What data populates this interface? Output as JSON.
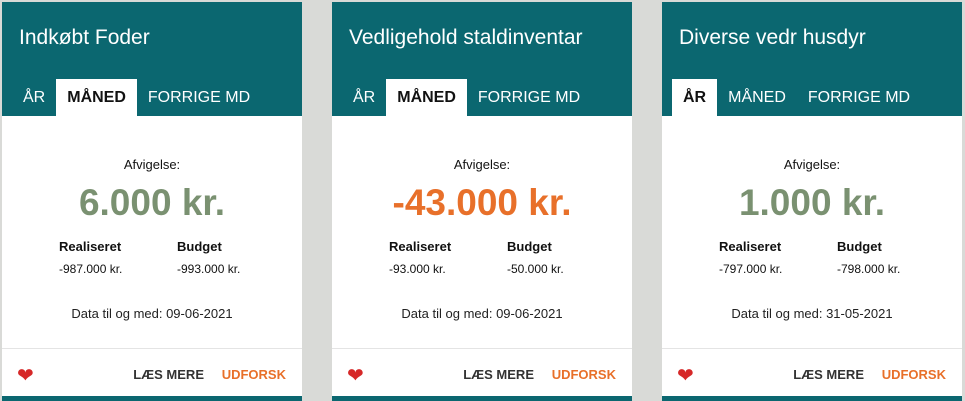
{
  "colors": {
    "header": "#0b6770",
    "positive": "#7a9171",
    "negative": "#e8702a"
  },
  "cards": [
    {
      "title": "Indkøbt Foder",
      "tabs": [
        "ÅR",
        "MÅNED",
        "FORRIGE MD"
      ],
      "active_tab": 1,
      "deviation_label": "Afvigelse:",
      "deviation": "6.000 kr.",
      "deviation_color": "#7a9171",
      "realized_label": "Realiseret",
      "realized": "-987.000 kr.",
      "budget_label": "Budget",
      "budget": "-993.000 kr.",
      "date": "Data til og med: 09-06-2021",
      "read_more": "LÆS MERE",
      "explore": "UDFORSK"
    },
    {
      "title": "Vedligehold staldinventar",
      "tabs": [
        "ÅR",
        "MÅNED",
        "FORRIGE MD"
      ],
      "active_tab": 1,
      "deviation_label": "Afvigelse:",
      "deviation": "-43.000 kr.",
      "deviation_color": "#e8702a",
      "realized_label": "Realiseret",
      "realized": "-93.000 kr.",
      "budget_label": "Budget",
      "budget": "-50.000 kr.",
      "date": "Data til og med: 09-06-2021",
      "read_more": "LÆS MERE",
      "explore": "UDFORSK"
    },
    {
      "title": "Diverse vedr husdyr",
      "tabs": [
        "ÅR",
        "MÅNED",
        "FORRIGE MD"
      ],
      "active_tab": 0,
      "deviation_label": "Afvigelse:",
      "deviation": "1.000 kr.",
      "deviation_color": "#7a9171",
      "realized_label": "Realiseret",
      "realized": "-797.000 kr.",
      "budget_label": "Budget",
      "budget": "-798.000 kr.",
      "date": "Data til og med: 31-05-2021",
      "read_more": "LÆS MERE",
      "explore": "UDFORSK"
    }
  ]
}
